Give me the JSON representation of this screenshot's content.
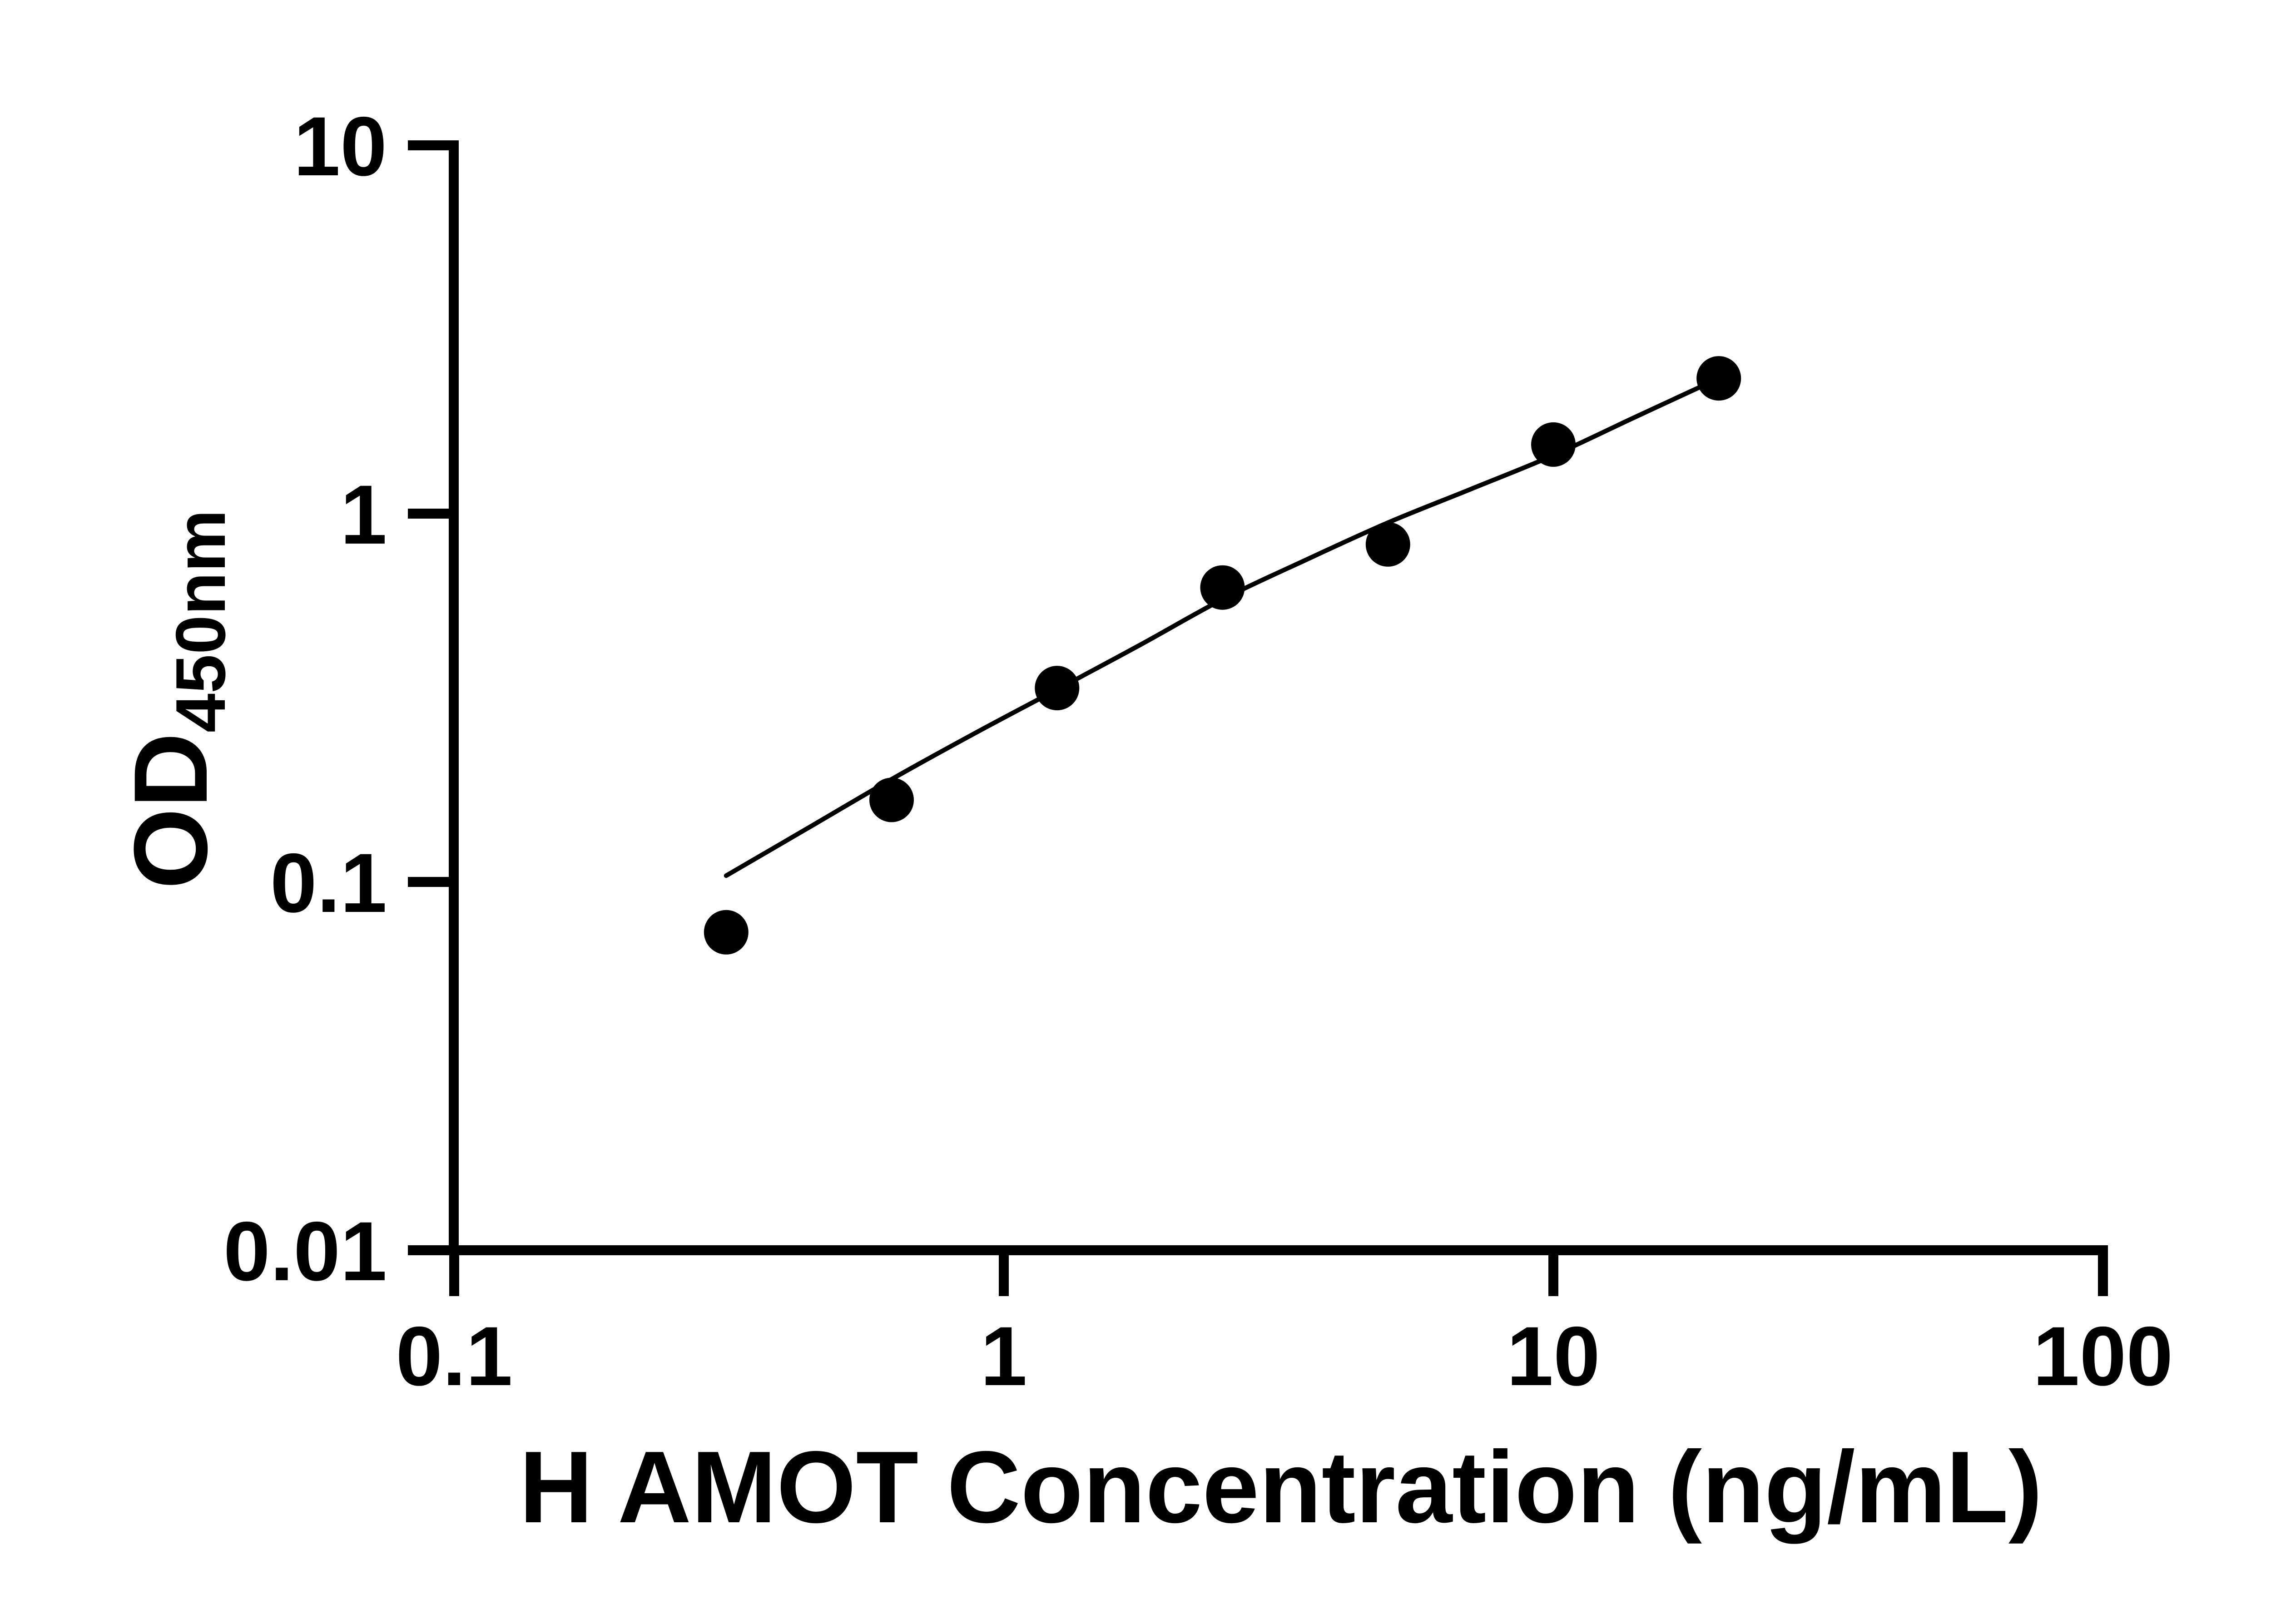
{
  "figure": {
    "background": "#ffffff",
    "ink": "#000000"
  },
  "chart_data": {
    "type": "scatter",
    "title": "",
    "xlabel": "H AMOT Concentration (ng/mL)",
    "ylabel": {
      "main": "OD",
      "sub": "450nm"
    },
    "x_scale": "log",
    "y_scale": "log",
    "xlim": [
      0.1,
      100
    ],
    "ylim": [
      0.01,
      10
    ],
    "grid": false,
    "legend": "none",
    "x_ticks": {
      "values": [
        0.1,
        1,
        10,
        100
      ],
      "labels": [
        "0.1",
        "1",
        "10",
        "100"
      ]
    },
    "y_ticks": {
      "values": [
        10,
        1,
        0.1,
        0.01
      ],
      "labels": [
        "10",
        "1",
        "0.1",
        "0.01"
      ]
    },
    "series": [
      {
        "name": "standard-curve-points",
        "marker": "filled-circle",
        "color": "#000000",
        "marker_radius_px": 49,
        "x": [
          0.3125,
          0.625,
          1.25,
          2.5,
          5,
          10,
          20
        ],
        "y": [
          0.073,
          0.167,
          0.336,
          0.63,
          0.825,
          1.54,
          2.33
        ]
      }
    ],
    "trendline": {
      "name": "fit-curve",
      "color": "#000000",
      "stroke_px": 10,
      "samples": {
        "x": [
          0.3125,
          0.44,
          0.625,
          0.88,
          1.25,
          1.77,
          2.5,
          3.54,
          5,
          7.07,
          10,
          14.1,
          20
        ],
        "y": [
          0.104,
          0.14,
          0.19,
          0.252,
          0.333,
          0.44,
          0.585,
          0.748,
          0.945,
          1.165,
          1.44,
          1.83,
          2.33
        ]
      }
    }
  }
}
